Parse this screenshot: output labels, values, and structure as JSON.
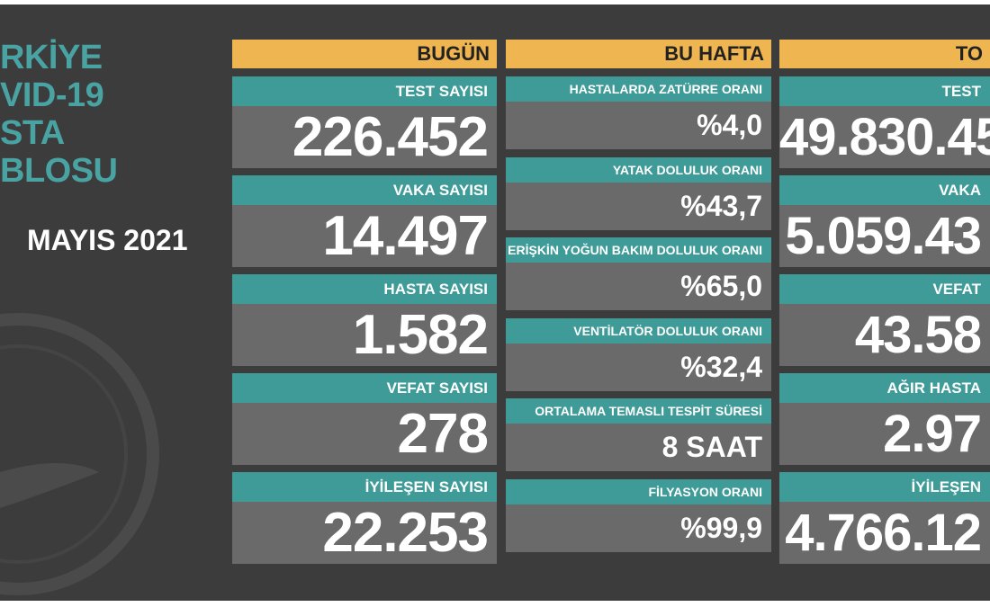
{
  "title_lines": [
    "RKİYE",
    "VID-19",
    "STA",
    "BLOSU"
  ],
  "date": "MAYIS 2021",
  "columns": [
    {
      "header": "BUGÜN",
      "cards": [
        {
          "label": "TEST SAYISI",
          "value": "226.452"
        },
        {
          "label": "VAKA SAYISI",
          "value": "14.497"
        },
        {
          "label": "HASTA SAYISI",
          "value": "1.582"
        },
        {
          "label": "VEFAT SAYISI",
          "value": "278"
        },
        {
          "label": "İYİLEŞEN SAYISI",
          "value": "22.253"
        }
      ]
    },
    {
      "header": "BU HAFTA",
      "cards": [
        {
          "label": "HASTALARDA ZATÜRRE ORANI",
          "value": "%4,0"
        },
        {
          "label": "YATAK DOLULUK ORANI",
          "value": "%43,7"
        },
        {
          "label": "ERİŞKİN YOĞUN BAKIM DOLULUK ORANI",
          "value": "%65,0"
        },
        {
          "label": "VENTİLATÖR DOLULUK ORANI",
          "value": "%32,4"
        },
        {
          "label": "ORTALAMA TEMASLI TESPİT SÜRESİ",
          "value": "8 SAAT"
        },
        {
          "label": "FİLYASYON ORANI",
          "value": "%99,9"
        }
      ]
    },
    {
      "header": "TO",
      "cards": [
        {
          "label": "TEST",
          "value": "49.830.45"
        },
        {
          "label": "VAKA",
          "value": "5.059.43"
        },
        {
          "label": "VEFAT",
          "value": "43.58"
        },
        {
          "label": "AĞIR HASTA",
          "value": "2.97"
        },
        {
          "label": "İYİLEŞEN",
          "value": "4.766.12"
        }
      ]
    }
  ]
}
